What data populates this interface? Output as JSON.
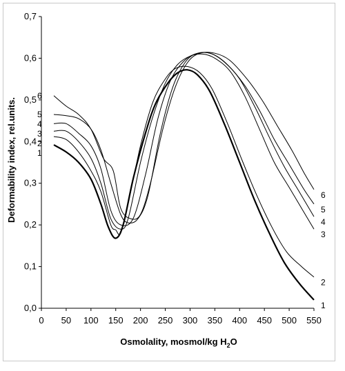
{
  "chart_data": {
    "type": "line",
    "title": "",
    "xlabel": "Osmolality, mosmol/kg H",
    "xlabel_sub": "2",
    "xlabel_tail": "O",
    "ylabel": "Deformability index, rel.units.",
    "xlim": [
      0,
      550
    ],
    "ylim": [
      0.0,
      0.7
    ],
    "x_ticks": [
      "0",
      "50",
      "100",
      "150",
      "200",
      "250",
      "300",
      "350",
      "400",
      "450",
      "500",
      "550"
    ],
    "y_ticks": [
      "0,0",
      "0,1",
      "0,2",
      "0,3",
      "0,4",
      "0,5",
      "0,6",
      "0,7"
    ],
    "grid": false,
    "legend": "none",
    "series": [
      {
        "name": "1",
        "bold": true,
        "points": [
          [
            25,
            0.392
          ],
          [
            50,
            0.375
          ],
          [
            75,
            0.35
          ],
          [
            100,
            0.31
          ],
          [
            120,
            0.25
          ],
          [
            135,
            0.195
          ],
          [
            150,
            0.168
          ],
          [
            165,
            0.2
          ],
          [
            185,
            0.31
          ],
          [
            210,
            0.42
          ],
          [
            230,
            0.49
          ],
          [
            255,
            0.54
          ],
          [
            275,
            0.565
          ],
          [
            295,
            0.572
          ],
          [
            315,
            0.56
          ],
          [
            340,
            0.52
          ],
          [
            370,
            0.44
          ],
          [
            400,
            0.35
          ],
          [
            430,
            0.26
          ],
          [
            460,
            0.18
          ],
          [
            490,
            0.11
          ],
          [
            520,
            0.06
          ],
          [
            550,
            0.02
          ]
        ]
      },
      {
        "name": "2",
        "bold": false,
        "points": [
          [
            25,
            0.412
          ],
          [
            50,
            0.405
          ],
          [
            75,
            0.375
          ],
          [
            100,
            0.33
          ],
          [
            120,
            0.28
          ],
          [
            140,
            0.2
          ],
          [
            150,
            0.188
          ],
          [
            160,
            0.18
          ],
          [
            175,
            0.25
          ],
          [
            200,
            0.39
          ],
          [
            225,
            0.495
          ],
          [
            250,
            0.55
          ],
          [
            270,
            0.575
          ],
          [
            295,
            0.58
          ],
          [
            320,
            0.565
          ],
          [
            345,
            0.525
          ],
          [
            375,
            0.445
          ],
          [
            405,
            0.355
          ],
          [
            435,
            0.27
          ],
          [
            465,
            0.195
          ],
          [
            495,
            0.135
          ],
          [
            525,
            0.1
          ],
          [
            550,
            0.075
          ]
        ]
      },
      {
        "name": "3",
        "bold": false,
        "points": [
          [
            25,
            0.425
          ],
          [
            50,
            0.425
          ],
          [
            75,
            0.4
          ],
          [
            100,
            0.36
          ],
          [
            120,
            0.3
          ],
          [
            140,
            0.215
          ],
          [
            160,
            0.19
          ],
          [
            175,
            0.215
          ],
          [
            200,
            0.35
          ],
          [
            225,
            0.46
          ],
          [
            250,
            0.54
          ],
          [
            275,
            0.585
          ],
          [
            300,
            0.605
          ],
          [
            325,
            0.61
          ],
          [
            350,
            0.6
          ],
          [
            380,
            0.57
          ],
          [
            410,
            0.51
          ],
          [
            440,
            0.43
          ],
          [
            470,
            0.35
          ],
          [
            500,
            0.29
          ],
          [
            530,
            0.23
          ],
          [
            550,
            0.19
          ]
        ]
      },
      {
        "name": "4",
        "bold": false,
        "points": [
          [
            25,
            0.443
          ],
          [
            50,
            0.443
          ],
          [
            75,
            0.42
          ],
          [
            100,
            0.39
          ],
          [
            120,
            0.335
          ],
          [
            140,
            0.235
          ],
          [
            160,
            0.2
          ],
          [
            185,
            0.215
          ],
          [
            210,
            0.32
          ],
          [
            235,
            0.455
          ],
          [
            260,
            0.545
          ],
          [
            285,
            0.59
          ],
          [
            310,
            0.61
          ],
          [
            340,
            0.612
          ],
          [
            370,
            0.59
          ],
          [
            400,
            0.55
          ],
          [
            430,
            0.485
          ],
          [
            460,
            0.41
          ],
          [
            490,
            0.34
          ],
          [
            520,
            0.28
          ],
          [
            550,
            0.22
          ]
        ]
      },
      {
        "name": "5",
        "bold": false,
        "points": [
          [
            25,
            0.465
          ],
          [
            50,
            0.462
          ],
          [
            75,
            0.455
          ],
          [
            100,
            0.43
          ],
          [
            120,
            0.38
          ],
          [
            140,
            0.3
          ],
          [
            160,
            0.225
          ],
          [
            175,
            0.205
          ],
          [
            195,
            0.215
          ],
          [
            215,
            0.27
          ],
          [
            240,
            0.42
          ],
          [
            265,
            0.53
          ],
          [
            290,
            0.59
          ],
          [
            315,
            0.612
          ],
          [
            345,
            0.61
          ],
          [
            375,
            0.585
          ],
          [
            410,
            0.535
          ],
          [
            440,
            0.475
          ],
          [
            470,
            0.405
          ],
          [
            500,
            0.345
          ],
          [
            530,
            0.285
          ],
          [
            550,
            0.25
          ]
        ]
      },
      {
        "name": "6",
        "bold": false,
        "points": [
          [
            25,
            0.51
          ],
          [
            50,
            0.485
          ],
          [
            75,
            0.465
          ],
          [
            100,
            0.43
          ],
          [
            125,
            0.36
          ],
          [
            145,
            0.33
          ],
          [
            160,
            0.24
          ],
          [
            180,
            0.215
          ],
          [
            200,
            0.225
          ],
          [
            220,
            0.3
          ],
          [
            245,
            0.43
          ],
          [
            270,
            0.53
          ],
          [
            295,
            0.59
          ],
          [
            320,
            0.612
          ],
          [
            350,
            0.612
          ],
          [
            380,
            0.595
          ],
          [
            415,
            0.55
          ],
          [
            445,
            0.5
          ],
          [
            475,
            0.44
          ],
          [
            505,
            0.38
          ],
          [
            530,
            0.325
          ],
          [
            550,
            0.285
          ]
        ]
      }
    ]
  }
}
